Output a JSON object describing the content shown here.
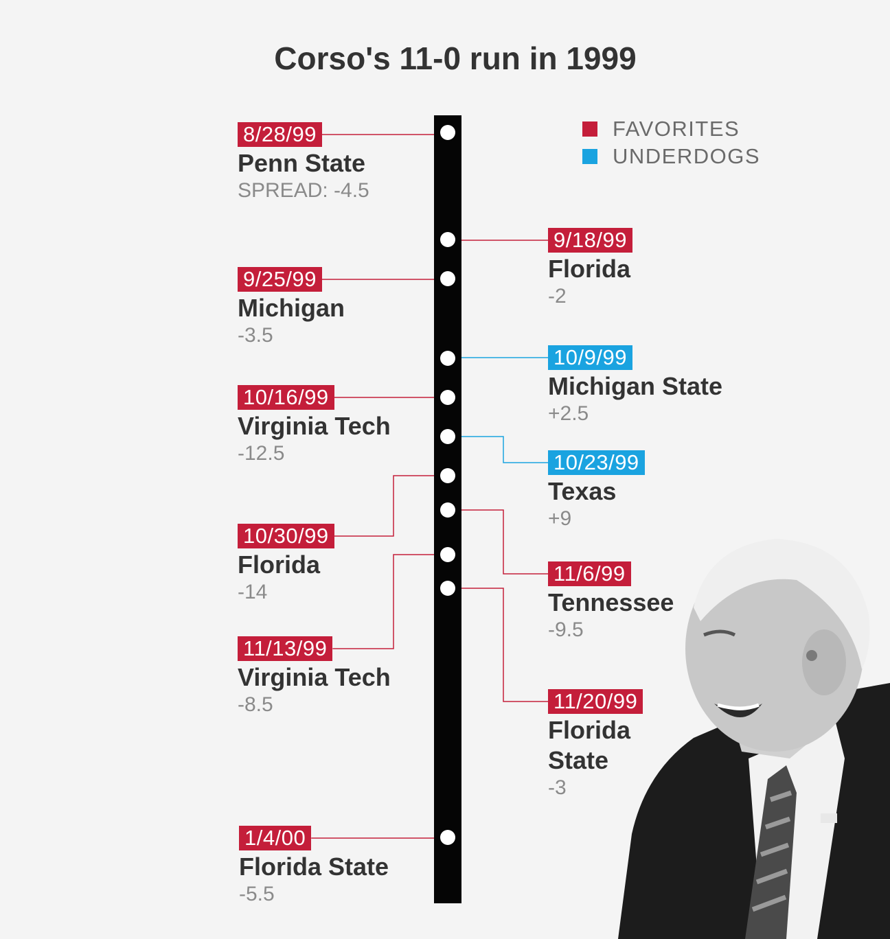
{
  "title": "Corso's 11-0 run in 1999",
  "legend": {
    "favorites": {
      "label": "FAVORITES",
      "color": "#c41e3a"
    },
    "underdogs": {
      "label": "UNDERDOGS",
      "color": "#1aa3e0"
    }
  },
  "games": [
    {
      "date": "8/28/99",
      "team": "Penn State",
      "spread": "SPREAD: -4.5",
      "type": "favorites"
    },
    {
      "date": "9/18/99",
      "team": "Florida",
      "spread": "-2",
      "type": "favorites"
    },
    {
      "date": "9/25/99",
      "team": "Michigan",
      "spread": "-3.5",
      "type": "favorites"
    },
    {
      "date": "10/9/99",
      "team": "Michigan State",
      "spread": "+2.5",
      "type": "underdogs"
    },
    {
      "date": "10/16/99",
      "team": "Virginia Tech",
      "spread": "-12.5",
      "type": "favorites"
    },
    {
      "date": "10/23/99",
      "team": "Texas",
      "spread": "+9",
      "type": "underdogs"
    },
    {
      "date": "10/30/99",
      "team": "Florida",
      "spread": "-14",
      "type": "favorites"
    },
    {
      "date": "11/6/99",
      "team": "Tennessee",
      "spread": "-9.5",
      "type": "favorites"
    },
    {
      "date": "11/13/99",
      "team": "Virginia Tech",
      "spread": "-8.5",
      "type": "favorites"
    },
    {
      "date": "11/20/99",
      "team": "Florida State",
      "spread": "-3",
      "type": "favorites"
    },
    {
      "date": "1/4/00",
      "team": "Florida State",
      "spread": "-5.5",
      "type": "favorites"
    }
  ]
}
